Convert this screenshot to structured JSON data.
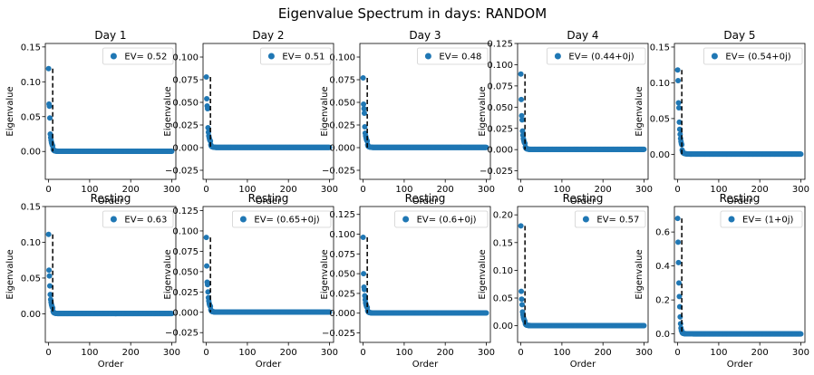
{
  "figure": {
    "title": "Eigenvalue Spectrum in days: RANDOM"
  },
  "chart_data": [
    {
      "type": "scatter",
      "title": "Day 1",
      "xlabel": "Order",
      "ylabel": "Eigenvalue",
      "xlim": [
        -8,
        310
      ],
      "ylim": [
        -0.04,
        0.155
      ],
      "xticks": [
        0,
        100,
        200,
        300
      ],
      "yticks": [
        0.0,
        0.05,
        0.1,
        0.15
      ],
      "ytick_labels": [
        "0.00",
        "0.05",
        "0.10",
        "0.15"
      ],
      "series": [
        {
          "name": "EV= 0.52",
          "top_values": [
            0.119,
            0.068,
            0.065,
            0.048,
            0.025,
            0.02,
            0.016,
            0.013,
            0.011,
            0.009
          ]
        }
      ],
      "cutoff_x": 10,
      "cutoff_y": 0.119,
      "legend": "top-right",
      "marker_color": "#1f77b4"
    },
    {
      "type": "scatter",
      "title": "Day 2",
      "xlabel": "Order",
      "ylabel": "Eigenvalue",
      "xlim": [
        -8,
        310
      ],
      "ylim": [
        -0.035,
        0.115
      ],
      "xticks": [
        0,
        100,
        200,
        300
      ],
      "yticks": [
        -0.025,
        0.0,
        0.025,
        0.05,
        0.075,
        0.1
      ],
      "ytick_labels": [
        "−0.025",
        "0.000",
        "0.025",
        "0.050",
        "0.075",
        "0.100"
      ],
      "series": [
        {
          "name": "EV= 0.51",
          "top_values": [
            0.078,
            0.054,
            0.046,
            0.043,
            0.022,
            0.017,
            0.013,
            0.011,
            0.009,
            0.008
          ]
        }
      ],
      "cutoff_x": 10,
      "cutoff_y": 0.078,
      "legend": "top-right",
      "marker_color": "#1f77b4"
    },
    {
      "type": "scatter",
      "title": "Day 3",
      "xlabel": "Order",
      "ylabel": "Eigenvalue",
      "xlim": [
        -8,
        310
      ],
      "ylim": [
        -0.035,
        0.115
      ],
      "xticks": [
        0,
        100,
        200,
        300
      ],
      "yticks": [
        -0.025,
        0.0,
        0.025,
        0.05,
        0.075,
        0.1
      ],
      "ytick_labels": [
        "−0.025",
        "0.000",
        "0.025",
        "0.050",
        "0.075",
        "0.100"
      ],
      "series": [
        {
          "name": "EV= 0.48",
          "top_values": [
            0.077,
            0.048,
            0.043,
            0.038,
            0.023,
            0.016,
            0.013,
            0.011,
            0.009,
            0.008
          ]
        }
      ],
      "cutoff_x": 10,
      "cutoff_y": 0.077,
      "legend": "top-right",
      "marker_color": "#1f77b4"
    },
    {
      "type": "scatter",
      "title": "Day 4",
      "xlabel": "Order",
      "ylabel": "Eigenvalue",
      "xlim": [
        -8,
        310
      ],
      "ylim": [
        -0.035,
        0.125
      ],
      "xticks": [
        0,
        100,
        200,
        300
      ],
      "yticks": [
        -0.025,
        0.0,
        0.025,
        0.05,
        0.075,
        0.1,
        0.125
      ],
      "ytick_labels": [
        "−0.025",
        "0.000",
        "0.025",
        "0.050",
        "0.075",
        "0.100",
        "0.125"
      ],
      "series": [
        {
          "name": "EV= (0.44+0j)",
          "top_values": [
            0.089,
            0.059,
            0.04,
            0.035,
            0.022,
            0.017,
            0.013,
            0.011,
            0.009,
            0.008
          ]
        }
      ],
      "cutoff_x": 10,
      "cutoff_y": 0.089,
      "legend": "top-right",
      "marker_color": "#1f77b4"
    },
    {
      "type": "scatter",
      "title": "Day 5",
      "xlabel": "Order",
      "ylabel": "Eigenvalue",
      "xlim": [
        -8,
        310
      ],
      "ylim": [
        -0.035,
        0.155
      ],
      "xticks": [
        0,
        100,
        200,
        300
      ],
      "yticks": [
        0.0,
        0.05,
        0.1,
        0.15
      ],
      "ytick_labels": [
        "0.00",
        "0.05",
        "0.10",
        "0.15"
      ],
      "series": [
        {
          "name": "EV= (0.54+0j)",
          "top_values": [
            0.118,
            0.103,
            0.072,
            0.065,
            0.045,
            0.035,
            0.028,
            0.022,
            0.018,
            0.015
          ]
        }
      ],
      "cutoff_x": 10,
      "cutoff_y": 0.118,
      "legend": "top-right",
      "marker_color": "#1f77b4"
    },
    {
      "type": "scatter",
      "title": "Resting",
      "xlabel": "Order",
      "ylabel": "Eigenvalue",
      "xlim": [
        -8,
        310
      ],
      "ylim": [
        -0.04,
        0.15
      ],
      "xticks": [
        0,
        100,
        200,
        300
      ],
      "yticks": [
        0.0,
        0.05,
        0.1,
        0.15
      ],
      "ytick_labels": [
        "0.00",
        "0.05",
        "0.10",
        "0.15"
      ],
      "series": [
        {
          "name": "EV= 0.63",
          "top_values": [
            0.111,
            0.061,
            0.053,
            0.039,
            0.027,
            0.02,
            0.016,
            0.013,
            0.011,
            0.009
          ]
        }
      ],
      "cutoff_x": 10,
      "cutoff_y": 0.111,
      "legend": "top-right",
      "marker_color": "#1f77b4"
    },
    {
      "type": "scatter",
      "title": "Resting",
      "xlabel": "Order",
      "ylabel": "Eigenvalue",
      "xlim": [
        -8,
        310
      ],
      "ylim": [
        -0.037,
        0.13
      ],
      "xticks": [
        0,
        100,
        200,
        300
      ],
      "yticks": [
        -0.025,
        0.0,
        0.025,
        0.05,
        0.075,
        0.1,
        0.125
      ],
      "ytick_labels": [
        "−0.025",
        "0.000",
        "0.025",
        "0.050",
        "0.075",
        "0.100",
        "0.125"
      ],
      "series": [
        {
          "name": "EV= (0.65+0j)",
          "top_values": [
            0.092,
            0.057,
            0.037,
            0.034,
            0.025,
            0.018,
            0.014,
            0.011,
            0.009,
            0.008
          ]
        }
      ],
      "cutoff_x": 10,
      "cutoff_y": 0.092,
      "legend": "top-right",
      "marker_color": "#1f77b4"
    },
    {
      "type": "scatter",
      "title": "Resting",
      "xlabel": "Order",
      "ylabel": "Eigenvalue",
      "xlim": [
        -8,
        310
      ],
      "ylim": [
        -0.037,
        0.135
      ],
      "xticks": [
        0,
        100,
        200,
        300
      ],
      "yticks": [
        -0.025,
        0.0,
        0.025,
        0.05,
        0.075,
        0.1,
        0.125
      ],
      "ytick_labels": [
        "−0.025",
        "0.000",
        "0.025",
        "0.050",
        "0.075",
        "0.100",
        "0.125"
      ],
      "series": [
        {
          "name": "EV= (0.6+0j)",
          "top_values": [
            0.096,
            0.05,
            0.033,
            0.03,
            0.022,
            0.017,
            0.013,
            0.011,
            0.009,
            0.008
          ]
        }
      ],
      "cutoff_x": 10,
      "cutoff_y": 0.096,
      "legend": "top-right",
      "marker_color": "#1f77b4"
    },
    {
      "type": "scatter",
      "title": "Resting",
      "xlabel": "Order",
      "ylabel": "Eigenvalue",
      "xlim": [
        -8,
        310
      ],
      "ylim": [
        -0.03,
        0.215
      ],
      "xticks": [
        0,
        100,
        200,
        300
      ],
      "yticks": [
        0.0,
        0.05,
        0.1,
        0.15,
        0.2
      ],
      "ytick_labels": [
        "0.00",
        "0.05",
        "0.10",
        "0.15",
        "0.20"
      ],
      "series": [
        {
          "name": "EV= 0.57",
          "top_values": [
            0.18,
            0.062,
            0.048,
            0.038,
            0.025,
            0.02,
            0.016,
            0.013,
            0.011,
            0.009
          ]
        }
      ],
      "cutoff_x": 10,
      "cutoff_y": 0.18,
      "legend": "top-right",
      "marker_color": "#1f77b4"
    },
    {
      "type": "scatter",
      "title": "Resting",
      "xlabel": "Order",
      "ylabel": "Eigenvalue",
      "xlim": [
        -8,
        310
      ],
      "ylim": [
        -0.05,
        0.75
      ],
      "xticks": [
        0,
        100,
        200,
        300
      ],
      "yticks": [
        0.0,
        0.2,
        0.4,
        0.6
      ],
      "ytick_labels": [
        "0.0",
        "0.2",
        "0.4",
        "0.6"
      ],
      "series": [
        {
          "name": "EV= (1+0j)",
          "top_values": [
            0.68,
            0.54,
            0.42,
            0.3,
            0.22,
            0.16,
            0.1,
            0.06,
            0.035,
            0.02
          ]
        }
      ],
      "cutoff_x": 10,
      "cutoff_y": 0.68,
      "legend": "top-right",
      "marker_color": "#1f77b4"
    }
  ]
}
